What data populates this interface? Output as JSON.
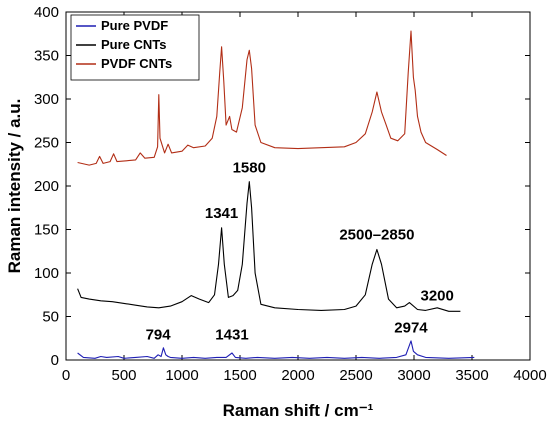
{
  "chart_data": {
    "type": "line",
    "xlabel": "Raman shift / cm⁻¹",
    "ylabel": "Raman intensity / a.u.",
    "xlim": [
      0,
      4000
    ],
    "ylim": [
      0,
      400
    ],
    "xticks": [
      0,
      500,
      1000,
      1500,
      2000,
      2500,
      3000,
      3500,
      4000
    ],
    "yticks": [
      0,
      50,
      100,
      150,
      200,
      250,
      300,
      350,
      400
    ],
    "grid": false,
    "legend_position": "top-left",
    "series": [
      {
        "name": "Pure PVDF",
        "color": "#1f1fb4",
        "points": [
          [
            100,
            8
          ],
          [
            150,
            3
          ],
          [
            250,
            2
          ],
          [
            300,
            4
          ],
          [
            350,
            3
          ],
          [
            450,
            4
          ],
          [
            500,
            2
          ],
          [
            600,
            3
          ],
          [
            700,
            4
          ],
          [
            760,
            2
          ],
          [
            794,
            6
          ],
          [
            820,
            4
          ],
          [
            840,
            14
          ],
          [
            860,
            6
          ],
          [
            880,
            4
          ],
          [
            900,
            3
          ],
          [
            1000,
            2
          ],
          [
            1100,
            3
          ],
          [
            1200,
            2
          ],
          [
            1300,
            3
          ],
          [
            1380,
            3
          ],
          [
            1431,
            8
          ],
          [
            1460,
            3
          ],
          [
            1550,
            2
          ],
          [
            1650,
            3
          ],
          [
            1800,
            2
          ],
          [
            1950,
            3
          ],
          [
            2100,
            2
          ],
          [
            2250,
            3
          ],
          [
            2400,
            2
          ],
          [
            2550,
            3
          ],
          [
            2700,
            2
          ],
          [
            2850,
            3
          ],
          [
            2930,
            6
          ],
          [
            2974,
            22
          ],
          [
            2995,
            10
          ],
          [
            3030,
            6
          ],
          [
            3100,
            3
          ],
          [
            3300,
            2
          ],
          [
            3520,
            3
          ]
        ]
      },
      {
        "name": "Pure CNTs",
        "color": "#000000",
        "points": [
          [
            100,
            82
          ],
          [
            130,
            72
          ],
          [
            200,
            70
          ],
          [
            300,
            68
          ],
          [
            400,
            67
          ],
          [
            500,
            65
          ],
          [
            600,
            63
          ],
          [
            700,
            61
          ],
          [
            800,
            60
          ],
          [
            900,
            62
          ],
          [
            1000,
            67
          ],
          [
            1080,
            74
          ],
          [
            1150,
            70
          ],
          [
            1230,
            66
          ],
          [
            1280,
            75
          ],
          [
            1315,
            110
          ],
          [
            1341,
            152
          ],
          [
            1365,
            110
          ],
          [
            1400,
            72
          ],
          [
            1440,
            74
          ],
          [
            1480,
            80
          ],
          [
            1520,
            110
          ],
          [
            1560,
            180
          ],
          [
            1580,
            205
          ],
          [
            1600,
            175
          ],
          [
            1630,
            100
          ],
          [
            1680,
            64
          ],
          [
            1800,
            60
          ],
          [
            2000,
            58
          ],
          [
            2200,
            57
          ],
          [
            2400,
            58
          ],
          [
            2500,
            62
          ],
          [
            2580,
            75
          ],
          [
            2640,
            110
          ],
          [
            2680,
            127
          ],
          [
            2720,
            110
          ],
          [
            2780,
            70
          ],
          [
            2850,
            60
          ],
          [
            2920,
            62
          ],
          [
            2960,
            66
          ],
          [
            3030,
            58
          ],
          [
            3100,
            57
          ],
          [
            3200,
            60
          ],
          [
            3300,
            56
          ],
          [
            3400,
            56
          ]
        ]
      },
      {
        "name": "PVDF CNTs",
        "color": "#b22e16",
        "points": [
          [
            100,
            227
          ],
          [
            200,
            224
          ],
          [
            260,
            226
          ],
          [
            290,
            234
          ],
          [
            320,
            226
          ],
          [
            380,
            228
          ],
          [
            410,
            237
          ],
          [
            440,
            228
          ],
          [
            520,
            229
          ],
          [
            600,
            230
          ],
          [
            640,
            238
          ],
          [
            680,
            232
          ],
          [
            760,
            233
          ],
          [
            790,
            245
          ],
          [
            800,
            305
          ],
          [
            810,
            255
          ],
          [
            850,
            238
          ],
          [
            880,
            248
          ],
          [
            910,
            238
          ],
          [
            1000,
            240
          ],
          [
            1050,
            247
          ],
          [
            1100,
            244
          ],
          [
            1200,
            246
          ],
          [
            1260,
            255
          ],
          [
            1300,
            280
          ],
          [
            1325,
            330
          ],
          [
            1341,
            360
          ],
          [
            1360,
            320
          ],
          [
            1380,
            270
          ],
          [
            1410,
            280
          ],
          [
            1430,
            265
          ],
          [
            1470,
            262
          ],
          [
            1520,
            290
          ],
          [
            1560,
            345
          ],
          [
            1580,
            356
          ],
          [
            1600,
            335
          ],
          [
            1630,
            270
          ],
          [
            1680,
            250
          ],
          [
            1800,
            244
          ],
          [
            2000,
            243
          ],
          [
            2200,
            244
          ],
          [
            2400,
            245
          ],
          [
            2500,
            250
          ],
          [
            2580,
            260
          ],
          [
            2640,
            285
          ],
          [
            2680,
            308
          ],
          [
            2720,
            285
          ],
          [
            2760,
            270
          ],
          [
            2800,
            255
          ],
          [
            2860,
            252
          ],
          [
            2920,
            260
          ],
          [
            2950,
            330
          ],
          [
            2974,
            378
          ],
          [
            2995,
            325
          ],
          [
            3010,
            310
          ],
          [
            3030,
            280
          ],
          [
            3060,
            262
          ],
          [
            3100,
            250
          ],
          [
            3200,
            242
          ],
          [
            3280,
            235
          ]
        ]
      }
    ],
    "annotations": [
      {
        "text": "1580",
        "x": 1580,
        "y": 212
      },
      {
        "text": "1341",
        "x": 1341,
        "y": 160
      },
      {
        "text": "2500–2850",
        "x": 2680,
        "y": 135
      },
      {
        "text": "3200",
        "x": 3200,
        "y": 65
      },
      {
        "text": "794",
        "x": 794,
        "y": 20
      },
      {
        "text": "1431",
        "x": 1431,
        "y": 20
      },
      {
        "text": "2974",
        "x": 2974,
        "y": 28
      }
    ]
  }
}
